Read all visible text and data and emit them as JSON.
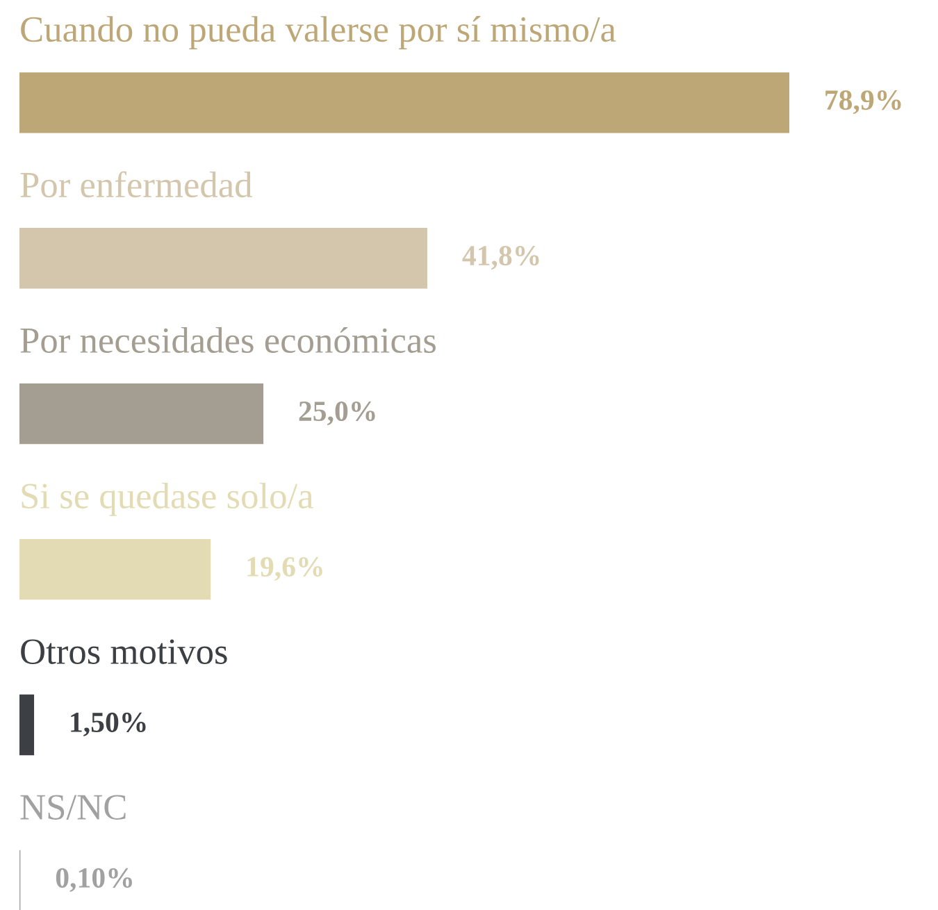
{
  "chart_data": {
    "type": "bar",
    "orientation": "horizontal",
    "categories": [
      "Cuando no pueda valerse por sí mismo/a",
      "Por enfermedad",
      "Por necesidades económicas",
      "Si se quedase solo/a",
      "Otros motivos",
      "NS/NC"
    ],
    "values": [
      78.9,
      41.8,
      25.0,
      19.6,
      1.5,
      0.1
    ],
    "colors": [
      "#bea777",
      "#d3c6ac",
      "#a49d91",
      "#e3dbb3",
      "#3c3f43",
      "#a1a1a1"
    ],
    "value_labels": [
      "78,9%",
      "41,8%",
      "25,0%",
      "19,6%",
      "1,50%",
      "0,10%"
    ]
  }
}
